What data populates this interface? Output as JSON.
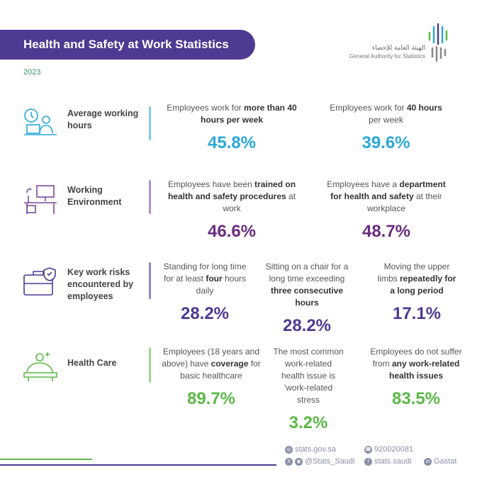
{
  "header": {
    "title": "Health and Safety at Work Statistics",
    "year": "2023",
    "logo": {
      "arabic": "الهيئة العامة للإحصاء",
      "english": "General Authority for Statistics"
    }
  },
  "colors": {
    "purple_banner": "#4e3a93",
    "teal": "#2aa8d8",
    "purple": "#6a2c7e",
    "green": "#5cb848"
  },
  "sections": [
    {
      "label": "Average working hours",
      "icon": "clock-worker-icon",
      "stats": [
        {
          "pre": "Employees work for ",
          "bold": "more than 40 hours per week",
          "post": "",
          "value": "45.8%"
        },
        {
          "pre": "Employees work for ",
          "bold": "40 hours",
          "post": " per week",
          "value": "39.6%"
        }
      ]
    },
    {
      "label": "Working Environment",
      "icon": "office-desk-icon",
      "stats": [
        {
          "pre": "Employees have been ",
          "bold": "trained on health and safety procedures",
          "post": " at work",
          "value": "46.6%"
        },
        {
          "pre": "Employees have a ",
          "bold": "department for health and safety",
          "post": " at their workplace",
          "value": "48.7%"
        }
      ]
    },
    {
      "label": "Key work risks encountered by employees",
      "icon": "briefcase-shield-icon",
      "stats": [
        {
          "pre": "Standing for long time for at least ",
          "bold": "four",
          "post": " hours daily",
          "value": "28.2%"
        },
        {
          "pre": "Sitting on a chair for a long time exceeding ",
          "bold": "three consecutive hours",
          "post": "",
          "value": "28.2%"
        },
        {
          "pre": "Moving the upper limbs ",
          "bold": "repeatedly for a long period",
          "post": "",
          "value": "17.1%"
        }
      ]
    },
    {
      "label": "Health Care",
      "icon": "healthcare-bed-icon",
      "stats": [
        {
          "pre": "Employees (18 years and above) have ",
          "bold": "coverage",
          "post": " for  basic healthcare",
          "value": "89.7%"
        },
        {
          "pre": "The most common work-related health issue is 'work-related ",
          "bold": "",
          "post": "stress",
          "value": "3.2%"
        },
        {
          "pre": "Employees do not suffer from ",
          "bold": "any work-related health issues",
          "post": "",
          "value": "83.5%"
        }
      ]
    }
  ],
  "footer": {
    "website": "stats.gov.sa",
    "phone": "920020081",
    "twitter_instagram": "@Stats_Saudi",
    "facebook": "stats.saudi",
    "linkedin": "Gastat"
  }
}
